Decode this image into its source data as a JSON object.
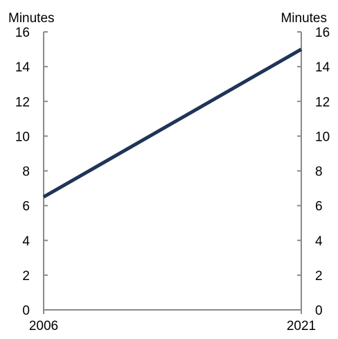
{
  "chart_data": {
    "type": "line",
    "x": [
      "2006",
      "2021"
    ],
    "series": [
      {
        "values": [
          6.5,
          15.0
        ],
        "color": "#1f3557"
      }
    ],
    "left_axis_label": "Minutes",
    "right_axis_label": "Minutes",
    "ylim": [
      0,
      16
    ],
    "y_ticks": [
      "0",
      "2",
      "4",
      "6",
      "8",
      "10",
      "12",
      "14",
      "16"
    ],
    "x_tick_labels": [
      "2006",
      "2021"
    ],
    "grid": false,
    "legend": "none",
    "axis_color": "#8a8a8a"
  }
}
